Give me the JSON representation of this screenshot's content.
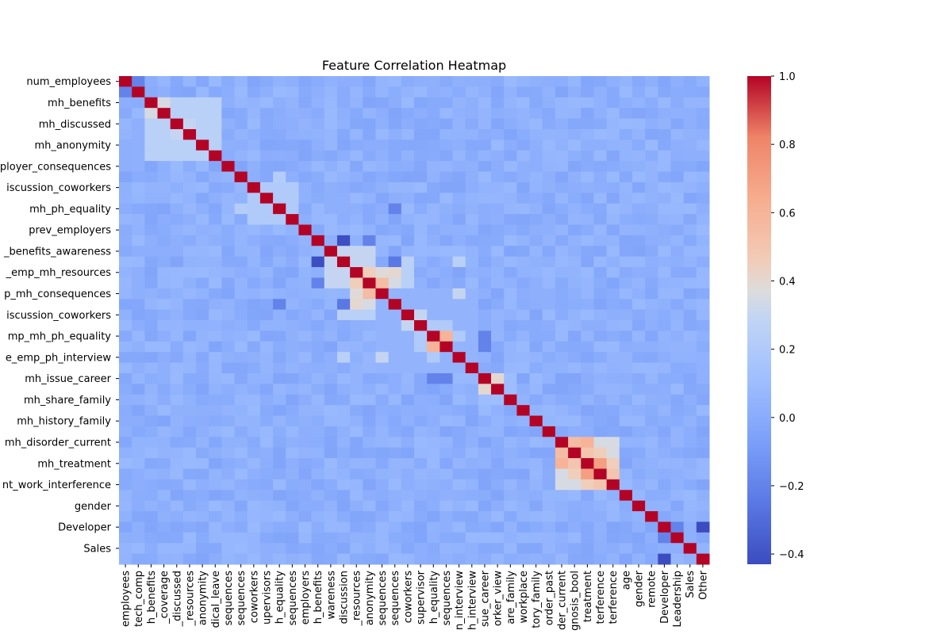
{
  "chart_data": {
    "type": "heatmap",
    "title": "Feature Correlation Heatmap",
    "colormap": "coolwarm",
    "colorbar": {
      "min": -0.43,
      "max": 1.0,
      "ticks": [
        1.0,
        0.8,
        0.6,
        0.4,
        0.2,
        0.0,
        -0.2,
        -0.4
      ],
      "tick_labels": [
        "1.0",
        "0.8",
        "0.6",
        "0.4",
        "0.2",
        "0.0",
        "−0.2",
        "−0.4"
      ]
    },
    "y_tick_labels": [
      "num_employees",
      "mh_benefits",
      "mh_discussed",
      "mh_anonymity",
      "ployer_consequences",
      "iscussion_coworkers",
      "mh_ph_equality",
      "prev_employers",
      "_benefits_awareness",
      "_emp_mh_resources",
      "p_mh_consequences",
      "iscussion_coworkers",
      "mp_mh_ph_equality",
      "e_emp_ph_interview",
      "mh_issue_career",
      "mh_share_family",
      "mh_history_family",
      "mh_disorder_current",
      "mh_treatment",
      "nt_work_interference",
      "gender",
      "Developer",
      "Sales"
    ],
    "y_tick_rows": [
      0,
      2,
      4,
      6,
      8,
      10,
      12,
      14,
      16,
      18,
      20,
      22,
      24,
      26,
      28,
      30,
      32,
      34,
      36,
      38,
      40,
      42,
      44
    ],
    "x_tick_labels": [
      "employees",
      "tech_comp",
      "h_benefits",
      "_coverage",
      "_discussed",
      "_resources",
      "anonymity",
      "dical_leave",
      "sequences",
      "sequences",
      "coworkers",
      "upervisors",
      "h_equality",
      "sequences",
      "employers",
      "h_benefits",
      "wareness",
      "discussion",
      "_resources",
      "anonymity",
      "sequences",
      "sequences",
      "coworkers",
      "supervisor",
      "h_equality",
      "sequences",
      "n_interview",
      "h_interview",
      "sue_career",
      "orker_view",
      "are_family",
      "workplace",
      "tory_family",
      "order_past",
      "der_current",
      "gnosis_bool",
      "treatment",
      "terference",
      "terference",
      "age",
      "gender",
      "remote",
      "Developer",
      "Leadership",
      "Sales",
      "Other"
    ],
    "size": 46,
    "block_correlations": [
      {
        "rows": [
          2,
          7
        ],
        "cols": [
          2,
          7
        ],
        "value": 0.25
      },
      {
        "rows": [
          10,
          13
        ],
        "cols": [
          10,
          13
        ],
        "value": 0.2
      },
      {
        "rows": [
          16,
          19
        ],
        "cols": [
          16,
          19
        ],
        "value": 0.3
      },
      {
        "rows": [
          17,
          19
        ],
        "cols": [
          21,
          22
        ],
        "value": 0.25
      },
      {
        "rows": [
          20,
          27
        ],
        "cols": [
          20,
          27
        ],
        "value": 0.05
      },
      {
        "rows": [
          23,
          25
        ],
        "cols": [
          23,
          25
        ],
        "value": 0.2
      },
      {
        "rows": [
          28,
          30
        ],
        "cols": [
          28,
          30
        ],
        "value": 0.1
      },
      {
        "rows": [
          34,
          38
        ],
        "cols": [
          34,
          38
        ],
        "value": 0.35
      }
    ],
    "cell_correlations": [
      {
        "r": 0,
        "c": 1,
        "value": -0.2
      },
      {
        "r": 2,
        "c": 3,
        "value": 0.35
      },
      {
        "r": 4,
        "c": 5,
        "value": 0.3
      },
      {
        "r": 9,
        "c": 12,
        "value": 0.22
      },
      {
        "r": 16,
        "c": 17,
        "value": 0.3
      },
      {
        "r": 17,
        "c": 15,
        "value": -0.42
      },
      {
        "r": 17,
        "c": 19,
        "value": 0.3
      },
      {
        "r": 18,
        "c": 19,
        "value": 0.45
      },
      {
        "r": 18,
        "c": 20,
        "value": 0.38
      },
      {
        "r": 18,
        "c": 21,
        "value": 0.4
      },
      {
        "r": 19,
        "c": 20,
        "value": 0.55
      },
      {
        "r": 19,
        "c": 21,
        "value": 0.35
      },
      {
        "r": 17,
        "c": 21,
        "value": -0.25
      },
      {
        "r": 19,
        "c": 15,
        "value": -0.2
      },
      {
        "r": 22,
        "c": 23,
        "value": 0.3
      },
      {
        "r": 24,
        "c": 25,
        "value": 0.6
      },
      {
        "r": 24,
        "c": 26,
        "value": 0.2
      },
      {
        "r": 21,
        "c": 12,
        "value": -0.2
      },
      {
        "r": 24,
        "c": 28,
        "value": -0.2
      },
      {
        "r": 25,
        "c": 28,
        "value": -0.2
      },
      {
        "r": 28,
        "c": 29,
        "value": 0.4
      },
      {
        "r": 34,
        "c": 35,
        "value": 0.55
      },
      {
        "r": 34,
        "c": 36,
        "value": 0.6
      },
      {
        "r": 35,
        "c": 36,
        "value": 0.5
      },
      {
        "r": 36,
        "c": 37,
        "value": 0.7
      },
      {
        "r": 36,
        "c": 38,
        "value": 0.45
      },
      {
        "r": 37,
        "c": 38,
        "value": 0.5
      },
      {
        "r": 35,
        "c": 37,
        "value": 0.45
      },
      {
        "r": 42,
        "c": 43,
        "value": -0.2
      },
      {
        "r": 42,
        "c": 45,
        "value": -0.43
      },
      {
        "r": 17,
        "c": 26,
        "value": 0.25
      },
      {
        "r": 20,
        "c": 26,
        "value": 0.3
      }
    ]
  }
}
